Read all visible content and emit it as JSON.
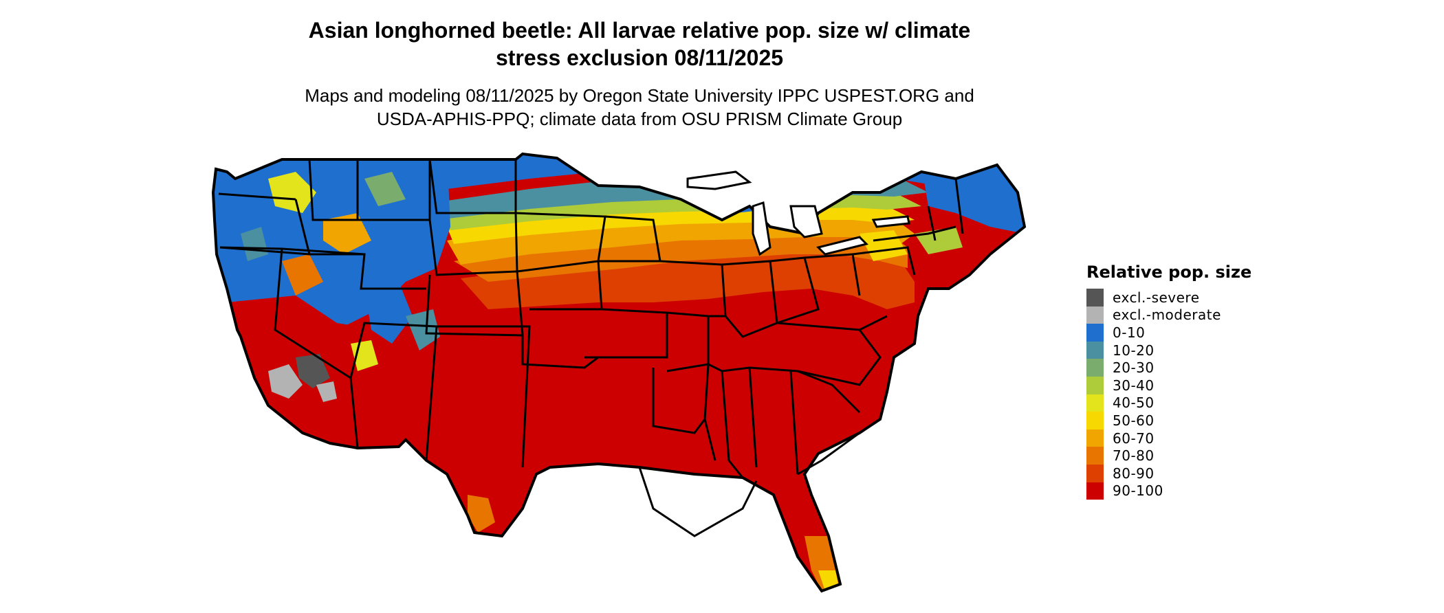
{
  "title_line1": "Asian longhorned beetle: All larvae relative pop. size w/ climate",
  "title_line2": "stress exclusion 08/11/2025",
  "subtitle_line1": "Maps and modeling 08/11/2025 by Oregon State University IPPC USPEST.ORG and",
  "subtitle_line2": "USDA-APHIS-PPQ; climate data from OSU PRISM Climate Group",
  "legend": {
    "title": "Relative pop. size",
    "items": [
      {
        "label": "excl.-severe",
        "color": "#555555"
      },
      {
        "label": "excl.-moderate",
        "color": "#b3b3b3"
      },
      {
        "label": "0-10",
        "color": "#1f6fcf"
      },
      {
        "label": "10-20",
        "color": "#4a90a0"
      },
      {
        "label": "20-30",
        "color": "#7aac6e"
      },
      {
        "label": "30-40",
        "color": "#aecb3a"
      },
      {
        "label": "40-50",
        "color": "#e3e41b"
      },
      {
        "label": "50-60",
        "color": "#f7d800"
      },
      {
        "label": "60-70",
        "color": "#f0a500"
      },
      {
        "label": "70-80",
        "color": "#e87500"
      },
      {
        "label": "80-90",
        "color": "#dd4000"
      },
      {
        "label": "90-100",
        "color": "#cc0000"
      }
    ]
  }
}
